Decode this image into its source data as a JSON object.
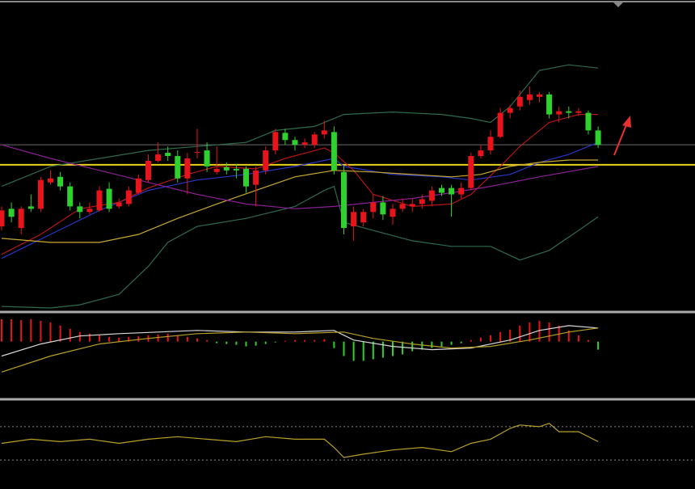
{
  "chart_data": [
    {
      "type": "candlestick",
      "ylim": [
        15,
        395
      ],
      "up_color": "#e8141c",
      "down_color": "#2fd12f",
      "open": [
        120,
        142,
        118,
        145,
        142,
        175,
        182,
        170,
        145,
        138,
        140,
        167,
        145,
        148,
        162,
        178,
        202,
        212,
        208,
        180,
        212,
        215,
        188,
        194,
        192,
        192,
        172,
        190,
        215,
        237,
        228,
        222,
        222,
        235,
        238,
        188,
        120,
        125,
        138,
        150,
        132,
        142,
        145,
        148,
        152,
        168,
        168,
        160,
        168,
        208,
        215,
        232,
        262,
        270,
        278,
        282,
        285,
        260,
        264,
        262,
        262,
        240
      ],
      "high": [
        145,
        150,
        145,
        160,
        182,
        190,
        188,
        175,
        150,
        150,
        170,
        175,
        155,
        170,
        185,
        210,
        225,
        220,
        215,
        212,
        242,
        225,
        220,
        200,
        198,
        195,
        195,
        220,
        242,
        242,
        232,
        230,
        238,
        252,
        245,
        195,
        145,
        142,
        160,
        158,
        148,
        155,
        155,
        160,
        170,
        172,
        172,
        175,
        212,
        222,
        240,
        268,
        272,
        290,
        295,
        288,
        288,
        270,
        270,
        268,
        265,
        245
      ],
      "low": [
        115,
        125,
        110,
        138,
        138,
        172,
        165,
        140,
        130,
        135,
        138,
        138,
        142,
        145,
        160,
        175,
        200,
        202,
        175,
        160,
        205,
        188,
        185,
        185,
        180,
        162,
        145,
        185,
        210,
        222,
        215,
        218,
        218,
        230,
        185,
        110,
        102,
        120,
        130,
        128,
        122,
        138,
        138,
        142,
        145,
        158,
        132,
        155,
        165,
        205,
        210,
        230,
        255,
        265,
        272,
        275,
        255,
        250,
        255,
        258,
        235,
        218
      ],
      "close": [
        140,
        132,
        142,
        142,
        178,
        180,
        170,
        145,
        138,
        142,
        165,
        142,
        150,
        165,
        180,
        202,
        210,
        208,
        180,
        205,
        213,
        195,
        192,
        190,
        190,
        170,
        190,
        215,
        238,
        228,
        222,
        225,
        235,
        240,
        190,
        118,
        138,
        138,
        150,
        135,
        142,
        148,
        148,
        154,
        165,
        162,
        160,
        168,
        208,
        215,
        232,
        262,
        268,
        282,
        285,
        285,
        260,
        264,
        262,
        264,
        240,
        222
      ],
      "overlays": [
        {
          "color": "#2f6a4e",
          "x": [
            0,
            5,
            10,
            15,
            20,
            25,
            28,
            32,
            35,
            40,
            45,
            48,
            50,
            52,
            55,
            58,
            61
          ],
          "values": [
            170,
            195,
            205,
            215,
            220,
            225,
            240,
            245,
            260,
            263,
            260,
            255,
            250,
            270,
            315,
            322,
            318
          ]
        },
        {
          "color": "#2f6a4e",
          "x": [
            0,
            5,
            8,
            12,
            15,
            17,
            20,
            25,
            30,
            33,
            34,
            35,
            38,
            42,
            46,
            50,
            53,
            56,
            59,
            61
          ],
          "values": [
            20,
            18,
            22,
            35,
            70,
            100,
            120,
            130,
            145,
            165,
            170,
            125,
            115,
            102,
            95,
            95,
            78,
            90,
            115,
            132
          ]
        },
        {
          "color": "#2a36c8",
          "x": [
            0,
            5,
            10,
            15,
            20,
            25,
            30,
            34,
            35,
            40,
            45,
            48,
            52,
            55,
            58,
            61
          ],
          "values": [
            80,
            110,
            140,
            165,
            178,
            185,
            195,
            205,
            195,
            185,
            182,
            178,
            185,
            200,
            210,
            225
          ]
        },
        {
          "color": "#b81414",
          "x": [
            0,
            4,
            8,
            12,
            15,
            19,
            22,
            26,
            29,
            33,
            34,
            36,
            38,
            42,
            46,
            48,
            51,
            53,
            56,
            59,
            61
          ],
          "values": [
            85,
            110,
            142,
            150,
            168,
            185,
            195,
            192,
            205,
            218,
            212,
            190,
            160,
            145,
            148,
            160,
            195,
            220,
            250,
            260,
            260
          ]
        },
        {
          "color": "#c8a830",
          "x": [
            0,
            5,
            10,
            14,
            18,
            22,
            26,
            30,
            34,
            38,
            42,
            46,
            49,
            52,
            55,
            58,
            61
          ],
          "values": [
            105,
            100,
            100,
            110,
            130,
            148,
            165,
            182,
            190,
            188,
            185,
            182,
            185,
            195,
            200,
            203,
            203
          ]
        },
        {
          "color": "#8a2094",
          "x": [
            0,
            5,
            10,
            15,
            20,
            25,
            30,
            34,
            38,
            42,
            46,
            50,
            55,
            61
          ],
          "values": [
            222,
            205,
            190,
            175,
            160,
            148,
            142,
            145,
            150,
            155,
            162,
            170,
            182,
            195
          ]
        }
      ],
      "hlines": [
        {
          "value": 197,
          "color": "#e8d21a"
        },
        {
          "value": 222,
          "color": "#6a6a6a"
        }
      ]
    },
    {
      "type": "histogram-lines",
      "ylim": [
        -70,
        34
      ],
      "up_color": "#e8141c",
      "down_color": "#2fd12f",
      "values": [
        28,
        28,
        27,
        28,
        26,
        24,
        20,
        16,
        12,
        10,
        8,
        6,
        5,
        6,
        7,
        8,
        9,
        10,
        8,
        6,
        4,
        2,
        -2,
        -3,
        -4,
        -6,
        -5,
        -3,
        -1,
        1,
        2,
        2,
        2,
        3,
        -8,
        -18,
        -24,
        -24,
        -22,
        -20,
        -18,
        -16,
        -12,
        -10,
        -8,
        -6,
        -4,
        -2,
        2,
        5,
        8,
        12,
        15,
        20,
        24,
        26,
        24,
        20,
        14,
        8,
        2,
        -10
      ],
      "series": [
        {
          "color": "#d8d8d8",
          "x": [
            0,
            4,
            8,
            12,
            16,
            20,
            25,
            30,
            34,
            36,
            40,
            44,
            48,
            52,
            55,
            58,
            61
          ],
          "values": [
            -18,
            -3,
            7,
            10,
            12,
            14,
            12,
            12,
            14,
            2,
            -6,
            -10,
            -8,
            2,
            14,
            20,
            17
          ]
        },
        {
          "color": "#b8a028",
          "x": [
            0,
            5,
            10,
            15,
            20,
            25,
            30,
            35,
            38,
            42,
            46,
            50,
            54,
            58,
            61
          ],
          "values": [
            -38,
            -18,
            -3,
            4,
            10,
            12,
            10,
            12,
            4,
            -3,
            -8,
            -6,
            2,
            12,
            17
          ]
        }
      ]
    },
    {
      "type": "line",
      "ylim": [
        0,
        100
      ],
      "levels": [
        70,
        30
      ],
      "series": [
        {
          "color": "#b8a028",
          "x": [
            0,
            3,
            6,
            9,
            12,
            15,
            18,
            21,
            24,
            27,
            30,
            33,
            34,
            35,
            37,
            40,
            43,
            46,
            48,
            50,
            52,
            53,
            55,
            56,
            57,
            59,
            61
          ],
          "values": [
            50,
            55,
            52,
            55,
            50,
            55,
            58,
            55,
            52,
            58,
            55,
            55,
            45,
            33,
            37,
            42,
            45,
            40,
            50,
            55,
            68,
            72,
            70,
            74,
            64,
            64,
            52
          ]
        }
      ]
    }
  ]
}
